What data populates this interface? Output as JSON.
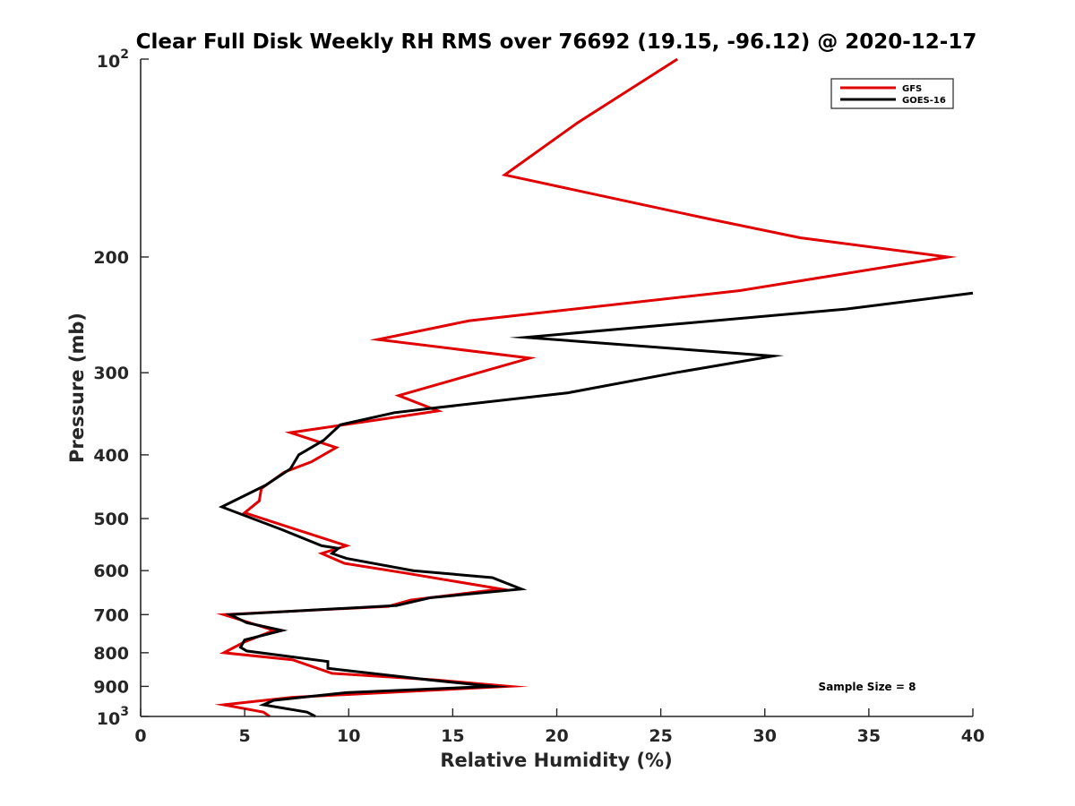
{
  "chart_data": {
    "type": "line",
    "title": "Clear Full Disk Weekly RH RMS over 76692 (19.15, -96.12) @ 2020-12-17",
    "xlabel": "Relative Humidity (%)",
    "ylabel": "Pressure (mb)",
    "xlim": [
      0,
      40
    ],
    "ylim": [
      100,
      1000
    ],
    "yscale": "log",
    "y_reversed": true,
    "xticks": [
      {
        "value": 0,
        "label": "0"
      },
      {
        "value": 5,
        "label": "5"
      },
      {
        "value": 10,
        "label": "10"
      },
      {
        "value": 15,
        "label": "15"
      },
      {
        "value": 20,
        "label": "20"
      },
      {
        "value": 25,
        "label": "25"
      },
      {
        "value": 30,
        "label": "30"
      },
      {
        "value": 35,
        "label": "35"
      },
      {
        "value": 40,
        "label": "40"
      }
    ],
    "yticks": [
      {
        "value": 100,
        "base": "10",
        "exp": "2"
      },
      {
        "value": 200,
        "label": "200"
      },
      {
        "value": 300,
        "label": "300"
      },
      {
        "value": 400,
        "label": "400"
      },
      {
        "value": 500,
        "label": "500"
      },
      {
        "value": 600,
        "label": "600"
      },
      {
        "value": 700,
        "label": "700"
      },
      {
        "value": 800,
        "label": "800"
      },
      {
        "value": 900,
        "label": "900"
      },
      {
        "value": 1000,
        "base": "10",
        "exp": "3"
      }
    ],
    "legend_position": "top-right",
    "annotation": "Sample Size = 8",
    "series": [
      {
        "name": "GFS",
        "color": "#e00000",
        "points": [
          {
            "x": 25.8,
            "p": 100
          },
          {
            "x": 21.0,
            "p": 125
          },
          {
            "x": 17.5,
            "p": 150
          },
          {
            "x": 27.3,
            "p": 175
          },
          {
            "x": 31.7,
            "p": 187
          },
          {
            "x": 38.8,
            "p": 200
          },
          {
            "x": 28.8,
            "p": 225
          },
          {
            "x": 15.8,
            "p": 250
          },
          {
            "x": 11.4,
            "p": 267
          },
          {
            "x": 18.7,
            "p": 285
          },
          {
            "x": 12.4,
            "p": 325
          },
          {
            "x": 14.3,
            "p": 343
          },
          {
            "x": 7.2,
            "p": 370
          },
          {
            "x": 9.4,
            "p": 390
          },
          {
            "x": 8.2,
            "p": 410
          },
          {
            "x": 6.9,
            "p": 425
          },
          {
            "x": 5.8,
            "p": 450
          },
          {
            "x": 5.7,
            "p": 470
          },
          {
            "x": 5.0,
            "p": 490
          },
          {
            "x": 6.7,
            "p": 510
          },
          {
            "x": 9.9,
            "p": 550
          },
          {
            "x": 8.7,
            "p": 565
          },
          {
            "x": 9.8,
            "p": 585
          },
          {
            "x": 12.7,
            "p": 605
          },
          {
            "x": 17.3,
            "p": 640
          },
          {
            "x": 13.0,
            "p": 665
          },
          {
            "x": 11.9,
            "p": 680
          },
          {
            "x": 4.0,
            "p": 700
          },
          {
            "x": 6.4,
            "p": 740
          },
          {
            "x": 5.0,
            "p": 770
          },
          {
            "x": 4.0,
            "p": 800
          },
          {
            "x": 7.3,
            "p": 820
          },
          {
            "x": 9.2,
            "p": 860
          },
          {
            "x": 14.2,
            "p": 880
          },
          {
            "x": 17.7,
            "p": 900
          },
          {
            "x": 7.3,
            "p": 935
          },
          {
            "x": 4.0,
            "p": 960
          },
          {
            "x": 5.9,
            "p": 985
          },
          {
            "x": 6.2,
            "p": 1000
          }
        ]
      },
      {
        "name": "GOES-16",
        "color": "#000000",
        "points": [
          {
            "x": 40.0,
            "p": 227
          },
          {
            "x": 33.9,
            "p": 240
          },
          {
            "x": 18.5,
            "p": 265
          },
          {
            "x": 30.4,
            "p": 283
          },
          {
            "x": 25.7,
            "p": 300
          },
          {
            "x": 20.5,
            "p": 322
          },
          {
            "x": 13.9,
            "p": 340
          },
          {
            "x": 12.2,
            "p": 345
          },
          {
            "x": 9.6,
            "p": 360
          },
          {
            "x": 8.8,
            "p": 380
          },
          {
            "x": 7.6,
            "p": 400
          },
          {
            "x": 7.2,
            "p": 420
          },
          {
            "x": 6.0,
            "p": 445
          },
          {
            "x": 3.9,
            "p": 480
          },
          {
            "x": 6.8,
            "p": 520
          },
          {
            "x": 8.7,
            "p": 550
          },
          {
            "x": 9.5,
            "p": 555
          },
          {
            "x": 9.2,
            "p": 565
          },
          {
            "x": 9.9,
            "p": 575
          },
          {
            "x": 13.1,
            "p": 600
          },
          {
            "x": 16.9,
            "p": 615
          },
          {
            "x": 18.3,
            "p": 640
          },
          {
            "x": 13.9,
            "p": 660
          },
          {
            "x": 12.3,
            "p": 678
          },
          {
            "x": 4.3,
            "p": 700
          },
          {
            "x": 5.1,
            "p": 720
          },
          {
            "x": 6.8,
            "p": 740
          },
          {
            "x": 5.0,
            "p": 765
          },
          {
            "x": 4.8,
            "p": 785
          },
          {
            "x": 5.1,
            "p": 795
          },
          {
            "x": 9.0,
            "p": 825
          },
          {
            "x": 9.0,
            "p": 845
          },
          {
            "x": 13.9,
            "p": 880
          },
          {
            "x": 16.9,
            "p": 900
          },
          {
            "x": 9.9,
            "p": 920
          },
          {
            "x": 6.4,
            "p": 945
          },
          {
            "x": 5.9,
            "p": 960
          },
          {
            "x": 8.0,
            "p": 985
          },
          {
            "x": 8.4,
            "p": 1000
          }
        ]
      }
    ]
  }
}
